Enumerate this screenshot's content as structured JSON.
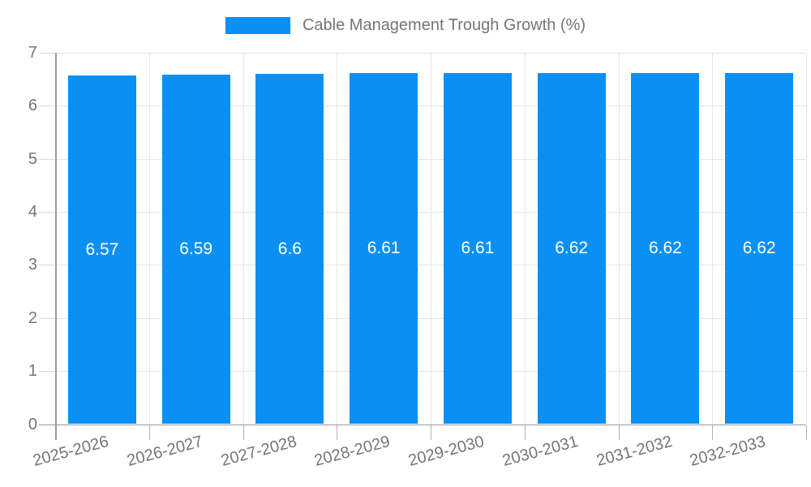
{
  "chart_data": {
    "type": "bar",
    "title": "Cable Management Trough Growth (%)",
    "categories": [
      "2025-2026",
      "2026-2027",
      "2027-2028",
      "2028-2029",
      "2029-2030",
      "2030-2031",
      "2031-2032",
      "2032-2033"
    ],
    "values": [
      6.57,
      6.59,
      6.6,
      6.61,
      6.61,
      6.62,
      6.62,
      6.62
    ],
    "value_labels": [
      "6.57",
      "6.59",
      "6.6",
      "6.61",
      "6.61",
      "6.62",
      "6.62",
      "6.62"
    ],
    "xlabel": "",
    "ylabel": "",
    "ylim": [
      0,
      7
    ],
    "yticks": [
      0,
      1,
      2,
      3,
      4,
      5,
      6,
      7
    ],
    "grid": true,
    "legend_position": "top",
    "value_labels_position": "center",
    "style": {
      "bar_color": "#0a90f4",
      "grid_color": "#e4e4e4",
      "axis_color": "#9a9a9a",
      "y_tick_color": "#d8d8d8",
      "x_tick_color": "#b0b0b0",
      "text_color": "#757575",
      "value_label_color": "#ffffff",
      "background": "#ffffff"
    }
  }
}
